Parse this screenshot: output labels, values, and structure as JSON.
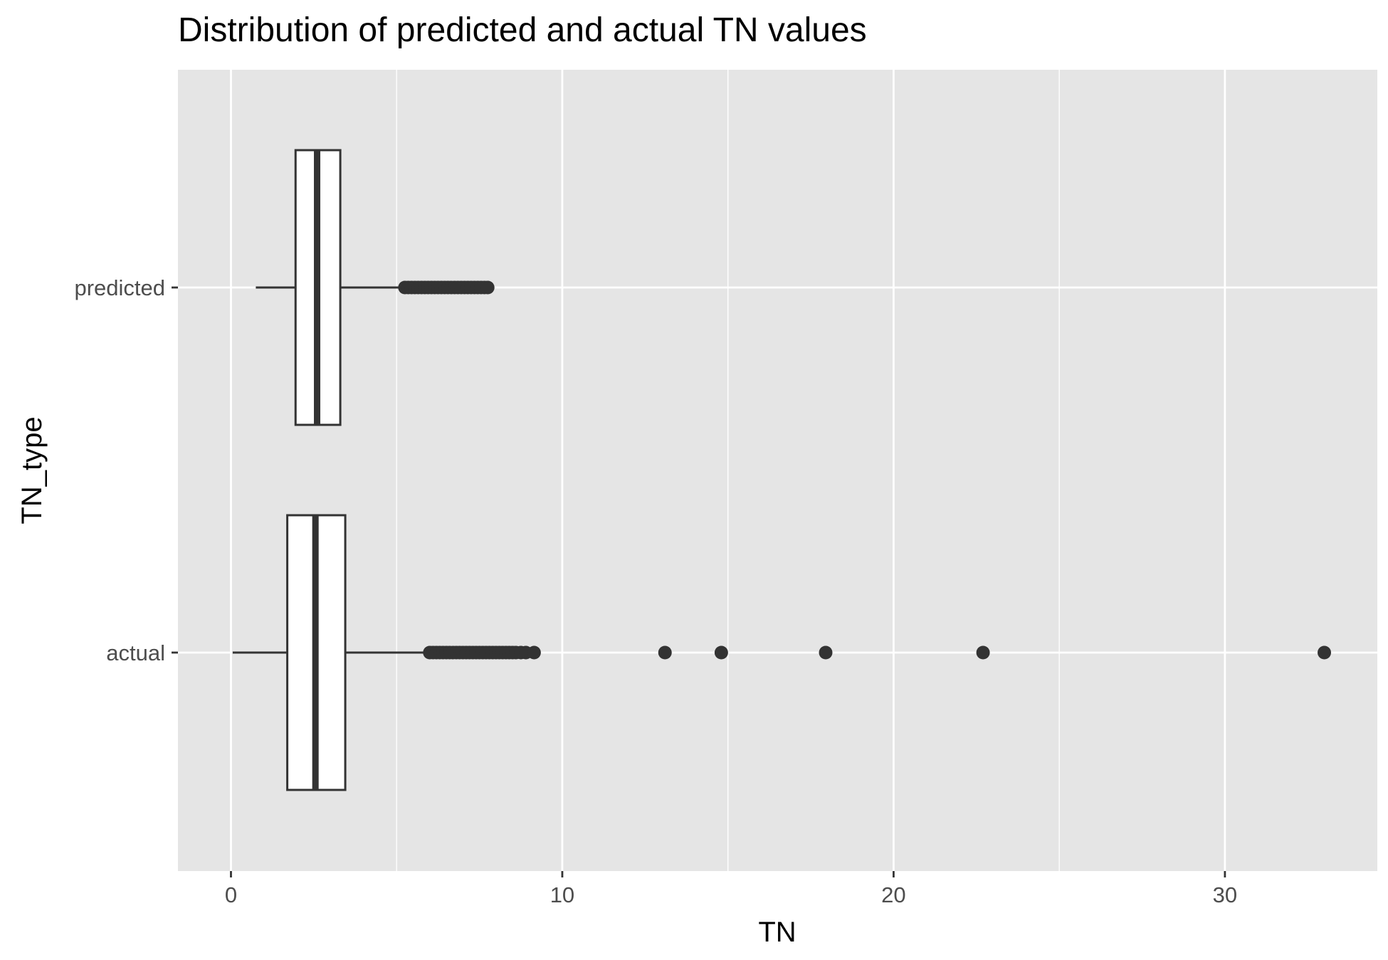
{
  "chart_data": {
    "type": "boxplot",
    "orientation": "horizontal",
    "title": "Distribution of predicted and actual TN values",
    "xlabel": "TN",
    "ylabel": "TN_type",
    "xlim": [
      -1.6,
      34.6
    ],
    "x_ticks": [
      0,
      10,
      20,
      30
    ],
    "x_tick_labels": [
      "0",
      "10",
      "20",
      "30"
    ],
    "grid": true,
    "legend": "none",
    "colors": {
      "panel": "#e5e5e5",
      "grid": "#ffffff",
      "box_fill": "#ffffff",
      "box_line": "#333333",
      "points": "#333333"
    },
    "categories": [
      "actual",
      "predicted"
    ],
    "boxes": [
      {
        "name": "predicted",
        "whisker_low": 0.75,
        "q1": 1.95,
        "median": 2.6,
        "q3": 3.3,
        "whisker_high": 5.2,
        "outliers": [
          5.25,
          5.35,
          5.45,
          5.55,
          5.65,
          5.75,
          5.85,
          5.95,
          6.05,
          6.15,
          6.25,
          6.35,
          6.45,
          6.55,
          6.65,
          6.75,
          6.85,
          6.95,
          7.05,
          7.15,
          7.25,
          7.35,
          7.45,
          7.55,
          7.65,
          7.75
        ]
      },
      {
        "name": "actual",
        "whisker_low": 0.05,
        "q1": 1.7,
        "median": 2.55,
        "q3": 3.45,
        "whisker_high": 5.95,
        "outliers": [
          6.0,
          6.1,
          6.2,
          6.3,
          6.4,
          6.5,
          6.6,
          6.7,
          6.8,
          6.9,
          7.0,
          7.1,
          7.2,
          7.3,
          7.4,
          7.5,
          7.6,
          7.7,
          7.8,
          7.9,
          8.0,
          8.1,
          8.2,
          8.3,
          8.4,
          8.5,
          8.6,
          8.75,
          8.9,
          9.15,
          13.1,
          14.8,
          17.95,
          22.7,
          33.0
        ]
      }
    ]
  }
}
